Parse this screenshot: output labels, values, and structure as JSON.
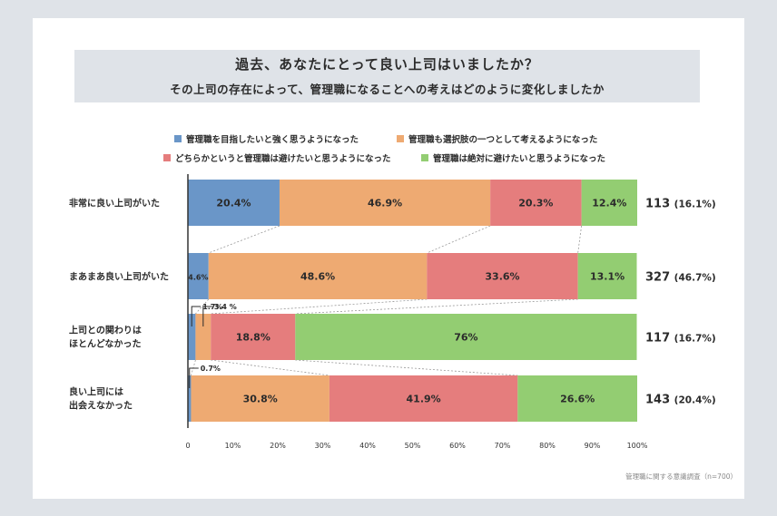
{
  "header": {
    "title": "過去、あなたにとって良い上司はいましたか？",
    "subtitle": "その上司の存在によって、管理職になることへの考えはどのように変化しましたか"
  },
  "source": "管理職に関する意識調査（n=700）",
  "colors": [
    "#6a96c8",
    "#eeaa72",
    "#e57d7d",
    "#93cd72"
  ],
  "chart_data": {
    "type": "bar",
    "orientation": "horizontal",
    "stacked": true,
    "categories": [
      "非常に良い上司がいた",
      "まあまあ良い上司がいた",
      "上司との関わりは\nほとんどなかった",
      "良い上司には\n出会えなかった"
    ],
    "series": [
      {
        "name": "管理職を目指したいと強く思うようになった",
        "values": [
          20.4,
          4.6,
          1.7,
          0.7
        ],
        "labels": [
          "20.4%",
          "4.6%",
          "1.7%",
          "0.7%"
        ]
      },
      {
        "name": "管理職も選択肢の一つとして考えるようになった",
        "values": [
          46.9,
          48.6,
          3.4,
          30.8
        ],
        "labels": [
          "46.9%",
          "48.6%",
          "3.4\n%",
          "30.8%"
        ]
      },
      {
        "name": "どちらかというと管理職は避けたいと思うようになった",
        "values": [
          20.3,
          33.6,
          18.8,
          41.9
        ],
        "labels": [
          "20.3%",
          "33.6%",
          "18.8%",
          "41.9%"
        ]
      },
      {
        "name": "管理職は絶対に避けたいと思うようになった",
        "values": [
          12.4,
          13.1,
          76,
          26.6
        ],
        "labels": [
          "12.4%",
          "13.1%",
          "76%",
          "26.6%"
        ]
      }
    ],
    "totals": [
      {
        "n": "113",
        "pct": "(16.1%)"
      },
      {
        "n": "327",
        "pct": "(46.7%)"
      },
      {
        "n": "117",
        "pct": "(16.7%)"
      },
      {
        "n": "143",
        "pct": "(20.4%)"
      }
    ],
    "xlim": [
      0,
      100
    ],
    "xticks": [
      "0",
      "10%",
      "20%",
      "30%",
      "40%",
      "50%",
      "60%",
      "70%",
      "80%",
      "90%",
      "100%"
    ],
    "legend_position": "top"
  }
}
